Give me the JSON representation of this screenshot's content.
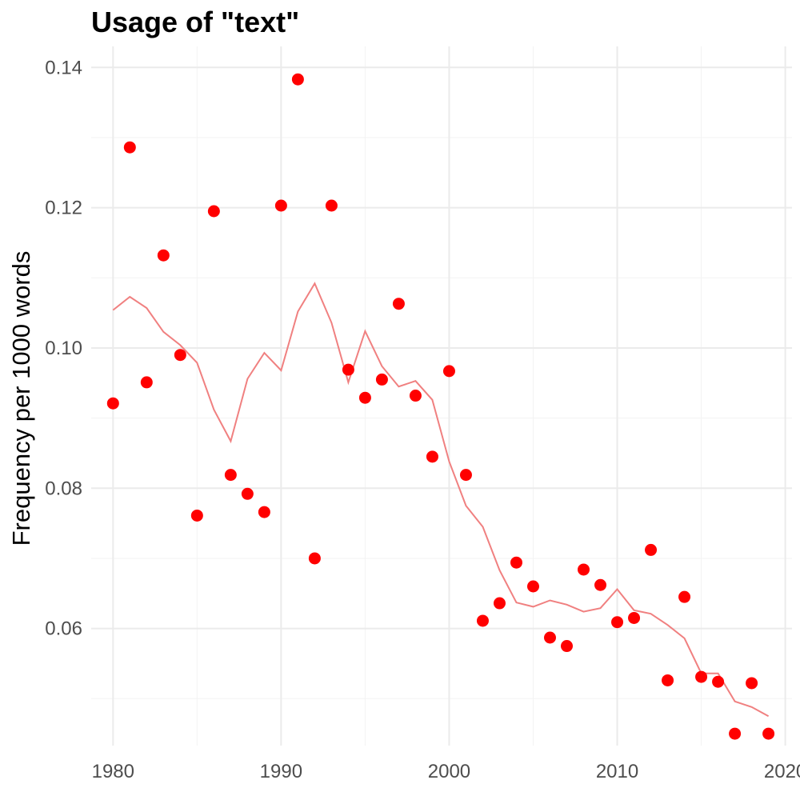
{
  "chart_data": {
    "type": "scatter",
    "title": "Usage of \"text\"",
    "xlabel": "",
    "ylabel": "Frequency per 1000 words",
    "xlim": [
      1978.7,
      2020.4
    ],
    "ylim": [
      0.0433,
      0.143
    ],
    "x_major_ticks": [
      1980,
      1990,
      2000,
      2010,
      2020
    ],
    "x_minor_ticks": [
      1985,
      1995,
      2005,
      2015
    ],
    "y_major_ticks": [
      0.06,
      0.08,
      0.1,
      0.12,
      0.14
    ],
    "y_minor_ticks": [
      0.05,
      0.07,
      0.09,
      0.11,
      0.13
    ],
    "x_tick_labels": [
      "1980",
      "1990",
      "2000",
      "2010",
      "2020"
    ],
    "y_tick_labels": [
      "0.06",
      "0.08",
      "0.10",
      "0.12",
      "0.14"
    ],
    "grid": true,
    "point_color": "#ff0000",
    "line_color": "#f08080",
    "series": [
      {
        "name": "frequency",
        "kind": "points",
        "x": [
          1980,
          1981,
          1982,
          1983,
          1984,
          1985,
          1986,
          1987,
          1988,
          1989,
          1990,
          1991,
          1992,
          1993,
          1994,
          1995,
          1996,
          1997,
          1998,
          1999,
          2000,
          2001,
          2002,
          2003,
          2004,
          2005,
          2006,
          2007,
          2008,
          2009,
          2010,
          2011,
          2012,
          2013,
          2014,
          2015,
          2016,
          2017,
          2018,
          2019
        ],
        "values": [
          0.0921,
          0.1286,
          0.0951,
          0.1132,
          0.099,
          0.0761,
          0.1195,
          0.0819,
          0.0792,
          0.0766,
          0.1203,
          0.1383,
          0.07,
          0.1203,
          0.0969,
          0.0929,
          0.0955,
          0.1063,
          0.0932,
          0.0845,
          0.0967,
          0.0819,
          0.0611,
          0.0636,
          0.0694,
          0.066,
          0.0587,
          0.0575,
          0.0684,
          0.0662,
          0.0609,
          0.0615,
          0.0712,
          0.0526,
          0.0645,
          0.0531,
          0.0524,
          0.045,
          0.0522,
          0.045
        ]
      },
      {
        "name": "trend",
        "kind": "line",
        "x": [
          1980,
          1981,
          1982,
          1983,
          1984,
          1985,
          1986,
          1987,
          1988,
          1989,
          1990,
          1991,
          1992,
          1993,
          1994,
          1995,
          1996,
          1997,
          1998,
          1999,
          2000,
          2001,
          2002,
          2003,
          2004,
          2005,
          2006,
          2007,
          2008,
          2009,
          2010,
          2011,
          2012,
          2013,
          2014,
          2015,
          2016,
          2017,
          2018,
          2019
        ],
        "values": [
          0.1054,
          0.1073,
          0.1057,
          0.1023,
          0.1004,
          0.0979,
          0.0912,
          0.0867,
          0.0956,
          0.0993,
          0.0968,
          0.1052,
          0.1092,
          0.1036,
          0.0951,
          0.1024,
          0.0974,
          0.0945,
          0.0953,
          0.0926,
          0.0838,
          0.0775,
          0.0745,
          0.0683,
          0.0637,
          0.0631,
          0.064,
          0.0634,
          0.0624,
          0.0629,
          0.0656,
          0.0626,
          0.0621,
          0.0605,
          0.0586,
          0.0536,
          0.0536,
          0.0496,
          0.0488,
          0.0475
        ]
      }
    ]
  }
}
